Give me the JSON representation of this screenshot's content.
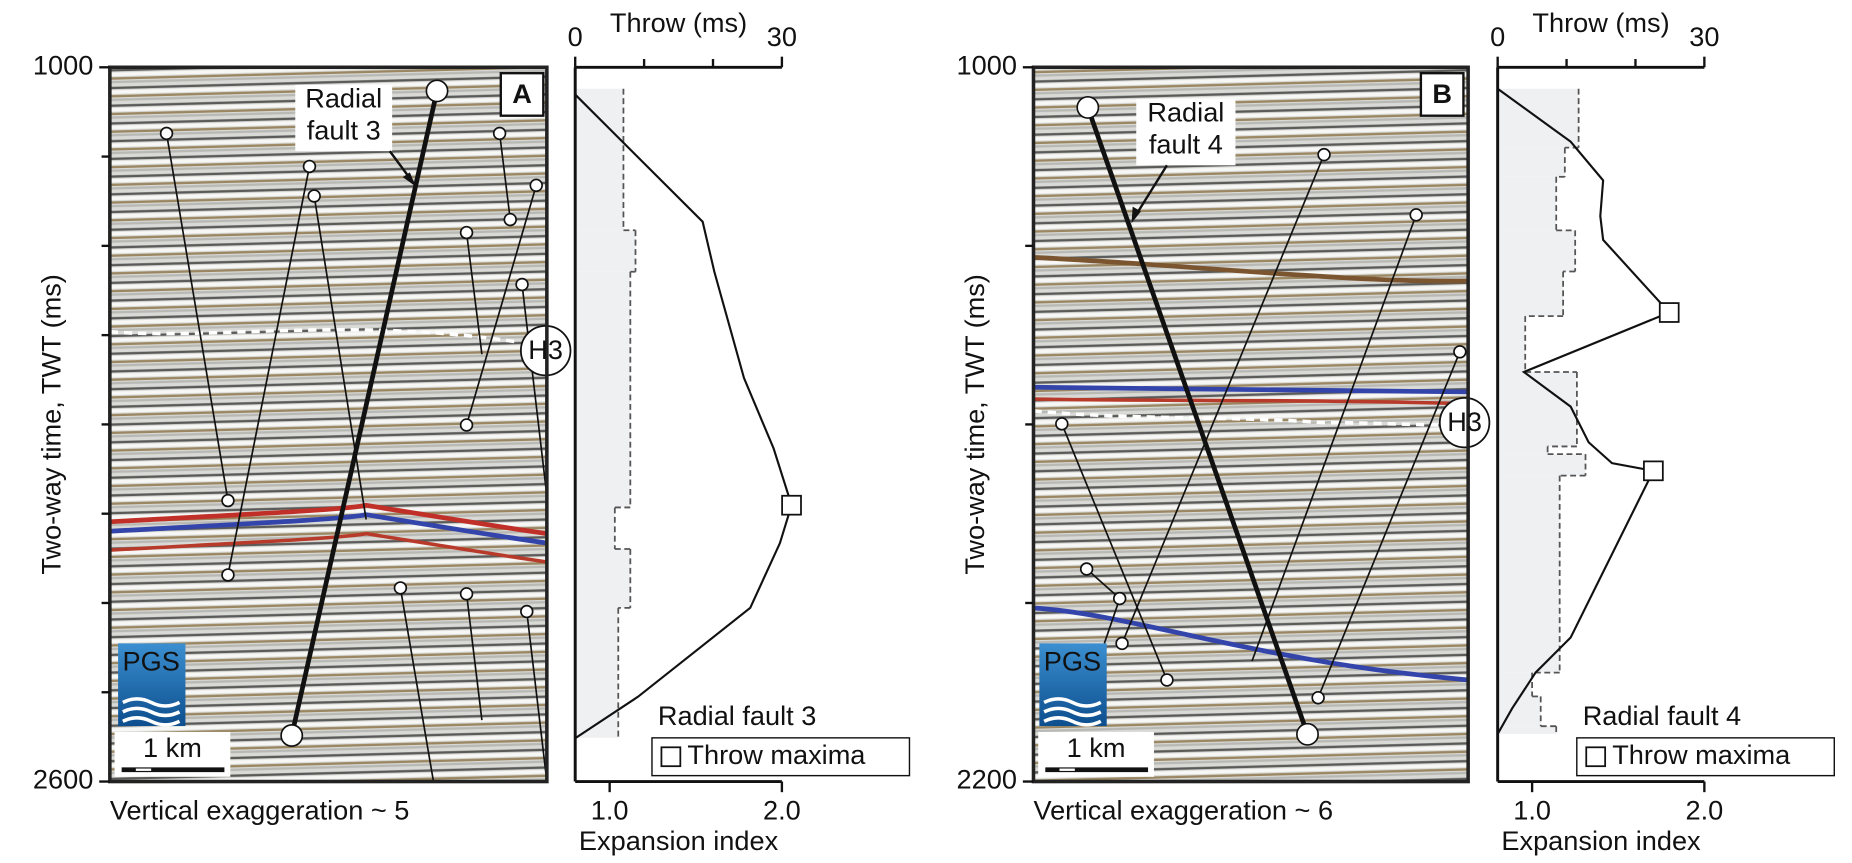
{
  "chart_data": [
    {
      "type": "line",
      "panel": "A",
      "ylabel": "Two-way time, TWT (ms)",
      "ylim": [
        1000,
        2600
      ],
      "y_inverted": true,
      "yticks": [
        1000,
        2600
      ],
      "yminor": [
        1200,
        1400,
        1600,
        1800,
        2000,
        2200,
        2400
      ],
      "xlabel": "Throw (ms)",
      "xlim": [
        0,
        30
      ],
      "xticks": [
        0,
        30
      ],
      "xminor": [
        10,
        20
      ],
      "x2label": "Expansion index",
      "x2lim": [
        0.8,
        2.0
      ],
      "x2ticks": [
        {
          "value": 1,
          "label": "1.0"
        },
        {
          "value": 2,
          "label": "2.0"
        }
      ],
      "series": [
        {
          "name": "Radial fault 3",
          "color": "#111111",
          "values": [
            0,
            18.5,
            20.2,
            24.5,
            28.8,
            31.4,
            29.7,
            25.4,
            9.1,
            0
          ],
          "twt": [
            1061,
            1346,
            1458,
            1696,
            1854,
            1981,
            2066,
            2211,
            2410,
            2503
          ]
        }
      ],
      "maxima": {
        "name": "Throw maxima",
        "values": [
          31.4
        ],
        "twt": [
          1981
        ]
      },
      "expansion": {
        "color": "#555555",
        "fill": "#eff0f2",
        "bins": [
          1048,
          1365,
          1458,
          1986,
          2079,
          2211,
          2502
        ],
        "values": [
          1.08,
          1.15,
          1.12,
          1.03,
          1.12,
          1.05
        ]
      },
      "fault_label": [
        "Radial",
        "fault 3"
      ],
      "horizon": "H3",
      "logo": "PGS",
      "scale_bar": "1 km",
      "note": "Vertical exaggeration ~ 5"
    },
    {
      "type": "line",
      "panel": "B",
      "ylabel": "Two-way time, TWT (ms)",
      "ylim": [
        1000,
        2200
      ],
      "y_inverted": true,
      "yticks": [
        1000,
        2200
      ],
      "yminor": [
        1300,
        1600,
        1900
      ],
      "xlabel": "Throw (ms)",
      "xlim": [
        0,
        30
      ],
      "xticks": [
        0,
        30
      ],
      "xminor": [
        10,
        20
      ],
      "x2label": "Expansion index",
      "x2lim": [
        0.8,
        2.0
      ],
      "x2ticks": [
        {
          "value": 1,
          "label": "1.0"
        },
        {
          "value": 2,
          "label": "2.0"
        }
      ],
      "series": [
        {
          "name": "Radial fault 4",
          "color": "#111111",
          "values": [
            0,
            10.6,
            15.3,
            14.9,
            15.3,
            24.9,
            3.8,
            10.6,
            13.2,
            16.6,
            22.6,
            10.6,
            5.5,
            2.1,
            0
          ],
          "twt": [
            1036,
            1125,
            1190,
            1250,
            1290,
            1412,
            1512,
            1570,
            1630,
            1665,
            1678,
            1958,
            2017,
            2077,
            2120
          ]
        }
      ],
      "maxima": {
        "name": "Throw maxima",
        "values": [
          24.9,
          22.6
        ],
        "twt": [
          1412,
          1678
        ]
      },
      "expansion": {
        "color": "#555555",
        "fill": "#eff0f2",
        "bins": [
          1036,
          1135,
          1184,
          1274,
          1343,
          1418,
          1512,
          1637,
          1650,
          1686,
          2017,
          2057,
          2107,
          2120
        ],
        "values": [
          1.27,
          1.19,
          1.14,
          1.25,
          1.18,
          0.96,
          1.26,
          1.09,
          1.31,
          1.16,
          1.0,
          1.05,
          1.14
        ]
      },
      "fault_label": [
        "Radial",
        "fault 4"
      ],
      "horizon": "H3",
      "logo": "PGS",
      "scale_bar": "1 km",
      "note": "Vertical exaggeration ~ 6"
    }
  ]
}
